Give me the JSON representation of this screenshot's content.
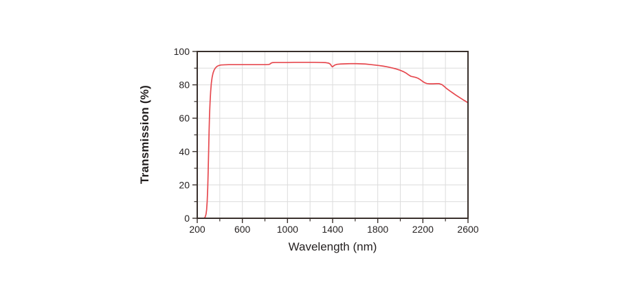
{
  "page": {
    "background": "#ffffff"
  },
  "chart_data": {
    "type": "line",
    "title": "",
    "xlabel": "Wavelength (nm)",
    "ylabel": "Transmission (%)",
    "grid": true,
    "legend_position": "none",
    "x_axis": {
      "min": 200,
      "max": 2600,
      "major_ticks": [
        200,
        600,
        1000,
        1400,
        1800,
        2200,
        2600
      ],
      "tick_labels": [
        "200",
        "600",
        "1000",
        "1400",
        "1800",
        "2200",
        "2600"
      ],
      "minor_tick_step": 200,
      "grid_step": 200
    },
    "y_axis": {
      "min": 0,
      "max": 100,
      "major_ticks": [
        0,
        20,
        40,
        60,
        80,
        100
      ],
      "tick_labels": [
        "0",
        "20",
        "40",
        "60",
        "80",
        "100"
      ],
      "minor_tick_step": 10,
      "grid_step": 10
    },
    "colors": {
      "curve": "#e6484e",
      "grid": "#dcdcdc",
      "axis": "#382f2b",
      "text": "#231f1f"
    },
    "series": [
      {
        "name": "Transmission",
        "color": "#e6484e",
        "points": [
          [
            200,
            0
          ],
          [
            245,
            0
          ],
          [
            258,
            0
          ],
          [
            266,
            0.3
          ],
          [
            272,
            1
          ],
          [
            278,
            2.5
          ],
          [
            283,
            5
          ],
          [
            288,
            10
          ],
          [
            293,
            18
          ],
          [
            297,
            28
          ],
          [
            301,
            40
          ],
          [
            305,
            52
          ],
          [
            309,
            62
          ],
          [
            314,
            70
          ],
          [
            319,
            76
          ],
          [
            325,
            81
          ],
          [
            332,
            84.5
          ],
          [
            340,
            87
          ],
          [
            350,
            88.9
          ],
          [
            362,
            90.2
          ],
          [
            376,
            91.1
          ],
          [
            392,
            91.6
          ],
          [
            410,
            91.9
          ],
          [
            440,
            92
          ],
          [
            480,
            92.1
          ],
          [
            530,
            92.1
          ],
          [
            580,
            92.1
          ],
          [
            640,
            92.1
          ],
          [
            700,
            92.1
          ],
          [
            760,
            92.1
          ],
          [
            810,
            92.1
          ],
          [
            835,
            92.2
          ],
          [
            848,
            92.6
          ],
          [
            856,
            93.1
          ],
          [
            866,
            93.3
          ],
          [
            890,
            93.4
          ],
          [
            940,
            93.4
          ],
          [
            1000,
            93.4
          ],
          [
            1060,
            93.5
          ],
          [
            1120,
            93.5
          ],
          [
            1180,
            93.5
          ],
          [
            1240,
            93.5
          ],
          [
            1300,
            93.4
          ],
          [
            1340,
            93.3
          ],
          [
            1365,
            93
          ],
          [
            1380,
            92.4
          ],
          [
            1390,
            91.3
          ],
          [
            1398,
            90.8
          ],
          [
            1408,
            91.3
          ],
          [
            1420,
            91.9
          ],
          [
            1440,
            92.3
          ],
          [
            1470,
            92.5
          ],
          [
            1510,
            92.6
          ],
          [
            1560,
            92.7
          ],
          [
            1610,
            92.7
          ],
          [
            1650,
            92.6
          ],
          [
            1690,
            92.5
          ],
          [
            1730,
            92.2
          ],
          [
            1770,
            91.9
          ],
          [
            1810,
            91.6
          ],
          [
            1850,
            91.2
          ],
          [
            1890,
            90.7
          ],
          [
            1930,
            90.1
          ],
          [
            1965,
            89.5
          ],
          [
            2000,
            88.7
          ],
          [
            2025,
            88
          ],
          [
            2050,
            87.1
          ],
          [
            2075,
            85.9
          ],
          [
            2095,
            85.1
          ],
          [
            2115,
            84.8
          ],
          [
            2135,
            84.5
          ],
          [
            2155,
            84
          ],
          [
            2175,
            83.2
          ],
          [
            2195,
            82.2
          ],
          [
            2215,
            81.3
          ],
          [
            2235,
            80.8
          ],
          [
            2260,
            80.6
          ],
          [
            2290,
            80.6
          ],
          [
            2320,
            80.7
          ],
          [
            2345,
            80.7
          ],
          [
            2370,
            80.1
          ],
          [
            2390,
            79
          ],
          [
            2410,
            77.8
          ],
          [
            2440,
            76.3
          ],
          [
            2470,
            74.9
          ],
          [
            2500,
            73.5
          ],
          [
            2530,
            72.2
          ],
          [
            2560,
            70.9
          ],
          [
            2580,
            70.1
          ],
          [
            2600,
            69.2
          ]
        ]
      }
    ]
  }
}
